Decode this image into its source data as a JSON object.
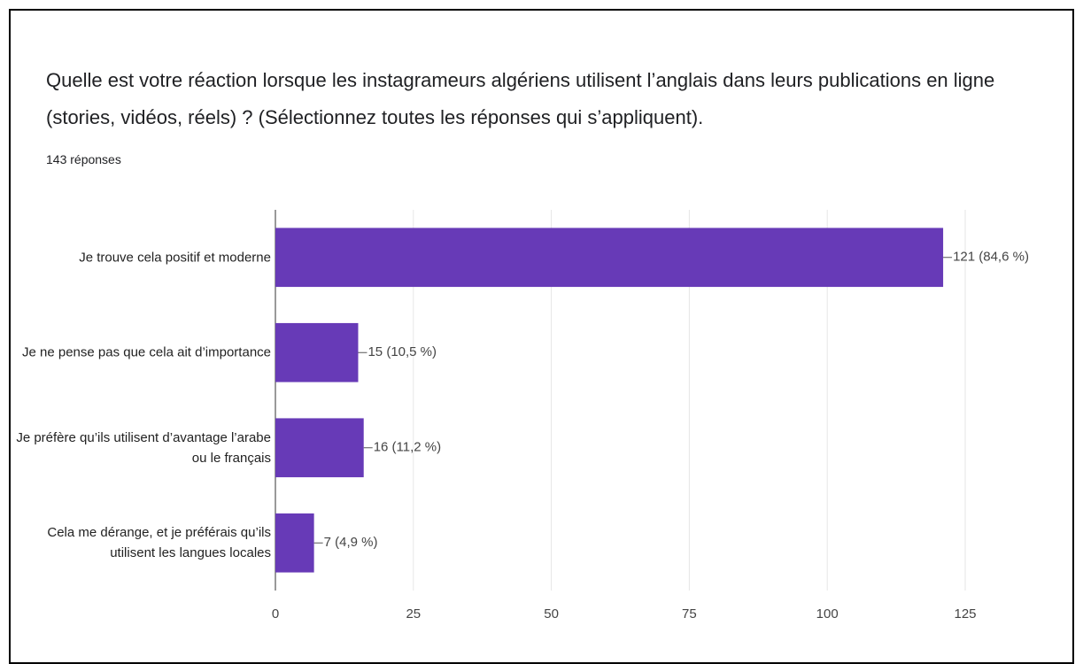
{
  "chart_data": {
    "type": "bar",
    "orientation": "horizontal",
    "title": "Quelle est votre réaction lorsque les instagrameurs algériens utilisent l’anglais dans leurs publications en ligne (stories, vidéos, réels) ? (Sélectionnez toutes les réponses qui s’appliquent).",
    "subtitle": "143 réponses",
    "categories": [
      "Je trouve cela positif et moderne",
      "Je ne pense pas que cela ait d’importance",
      "Je préfère qu’ils utilisent d’avantage l’arabe ou le français",
      "Cela me dérange, et je préférais qu’ils utilisent les langues locales"
    ],
    "values": [
      121,
      15,
      16,
      7
    ],
    "value_labels": [
      "121 (84,6 %)",
      "15 (10,5 %)",
      "16 (11,2 %)",
      "7 (4,9 %)"
    ],
    "color": "#673ab7",
    "xlim": [
      0,
      125
    ],
    "xticks": [
      0,
      25,
      50,
      75,
      100,
      125
    ],
    "grid": true
  }
}
